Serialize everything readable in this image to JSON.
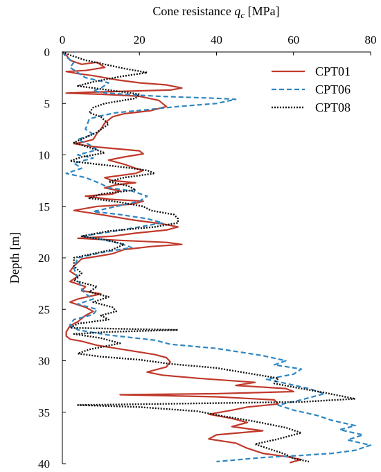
{
  "chart_data": {
    "type": "line",
    "xlabel": "Cone resistance q_c [MPa]",
    "ylabel": "Depth [m]",
    "xlim": [
      0,
      80
    ],
    "ylim": [
      0,
      40
    ],
    "y_inverted": true,
    "x_axis_position": "top",
    "x_ticks": [
      "0",
      "20",
      "40",
      "60",
      "80"
    ],
    "y_ticks": [
      "0",
      "5",
      "10",
      "15",
      "20",
      "25",
      "30",
      "35",
      "40"
    ],
    "grid": false,
    "legend_position": "top-right",
    "series": [
      {
        "name": "CPT01",
        "color": "#c0392b",
        "dash": "solid",
        "points": [
          [
            0,
            0
          ],
          [
            1,
            0.3
          ],
          [
            2,
            0.8
          ],
          [
            5,
            1.2
          ],
          [
            9,
            1.0
          ],
          [
            11,
            1.5
          ],
          [
            6,
            1.8
          ],
          [
            1,
            1.9
          ],
          [
            4,
            2.1
          ],
          [
            8,
            2.3
          ],
          [
            14,
            2.7
          ],
          [
            20,
            3.0
          ],
          [
            27,
            3.2
          ],
          [
            31,
            3.5
          ],
          [
            28,
            3.7
          ],
          [
            18,
            3.8
          ],
          [
            8,
            3.9
          ],
          [
            1,
            4.0
          ],
          [
            10,
            4.1
          ],
          [
            20,
            4.3
          ],
          [
            25,
            4.7
          ],
          [
            27,
            5.3
          ],
          [
            23,
            5.7
          ],
          [
            16,
            6.0
          ],
          [
            13,
            6.3
          ],
          [
            11,
            6.9
          ],
          [
            10,
            7.5
          ],
          [
            9,
            7.9
          ],
          [
            8,
            8.5
          ],
          [
            5,
            8.8
          ],
          [
            3,
            8.9
          ],
          [
            8,
            9.2
          ],
          [
            14,
            9.4
          ],
          [
            20,
            9.6
          ],
          [
            21,
            9.9
          ],
          [
            16,
            10.2
          ],
          [
            12,
            10.5
          ],
          [
            16,
            10.9
          ],
          [
            19,
            11.3
          ],
          [
            21,
            11.5
          ],
          [
            19,
            11.8
          ],
          [
            11,
            12.2
          ],
          [
            13,
            12.5
          ],
          [
            19,
            12.7
          ],
          [
            14,
            12.9
          ],
          [
            11,
            13.2
          ],
          [
            15,
            13.5
          ],
          [
            13,
            13.8
          ],
          [
            6,
            14.0
          ],
          [
            12,
            14.3
          ],
          [
            21,
            14.5
          ],
          [
            18,
            14.8
          ],
          [
            9,
            15.0
          ],
          [
            3,
            15.4
          ],
          [
            10,
            15.8
          ],
          [
            18,
            16.3
          ],
          [
            26,
            16.7
          ],
          [
            30,
            17.0
          ],
          [
            27,
            17.3
          ],
          [
            19,
            17.6
          ],
          [
            13,
            17.9
          ],
          [
            4,
            18.1
          ],
          [
            15,
            18.3
          ],
          [
            27,
            18.5
          ],
          [
            31,
            18.7
          ],
          [
            23,
            18.9
          ],
          [
            16,
            19.2
          ],
          [
            13,
            19.6
          ],
          [
            10,
            19.8
          ],
          [
            5,
            20.1
          ],
          [
            3,
            20.8
          ],
          [
            2,
            21.3
          ],
          [
            4,
            21.8
          ],
          [
            2,
            22.3
          ],
          [
            6,
            22.8
          ],
          [
            5,
            23.2
          ],
          [
            10,
            23.5
          ],
          [
            4,
            24.0
          ],
          [
            2,
            24.3
          ],
          [
            6,
            24.8
          ],
          [
            8,
            25.2
          ],
          [
            6,
            25.6
          ],
          [
            4,
            26.2
          ],
          [
            2,
            26.6
          ],
          [
            1,
            27.2
          ],
          [
            1,
            27.6
          ],
          [
            2,
            27.9
          ],
          [
            5,
            28.1
          ],
          [
            9,
            28.5
          ],
          [
            14,
            28.8
          ],
          [
            19,
            29.1
          ],
          [
            24,
            29.4
          ],
          [
            27,
            29.7
          ],
          [
            28,
            30.1
          ],
          [
            27,
            30.6
          ],
          [
            22,
            31.1
          ],
          [
            26,
            31.4
          ],
          [
            35,
            31.7
          ],
          [
            50,
            32.1
          ],
          [
            45,
            32.4
          ],
          [
            58,
            32.7
          ],
          [
            60,
            33.0
          ],
          [
            40,
            33.2
          ],
          [
            15,
            33.3
          ],
          [
            40,
            33.5
          ],
          [
            55,
            33.8
          ],
          [
            56,
            34.2
          ],
          [
            48,
            34.5
          ],
          [
            44,
            34.8
          ],
          [
            38,
            35.2
          ],
          [
            44,
            35.6
          ],
          [
            48,
            36.0
          ],
          [
            44,
            36.4
          ],
          [
            52,
            36.8
          ],
          [
            40,
            37.2
          ],
          [
            38,
            37.6
          ],
          [
            45,
            38.0
          ],
          [
            48,
            38.5
          ],
          [
            52,
            39.0
          ],
          [
            58,
            39.3
          ],
          [
            62,
            39.6
          ],
          [
            59,
            39.9
          ]
        ]
      },
      {
        "name": "CPT06",
        "color": "#2e86c1",
        "dash": "dashed",
        "points": [
          [
            0,
            0
          ],
          [
            1,
            0.5
          ],
          [
            3,
            1.0
          ],
          [
            2,
            1.5
          ],
          [
            4,
            2.0
          ],
          [
            6,
            2.5
          ],
          [
            12,
            3.0
          ],
          [
            10,
            3.5
          ],
          [
            8,
            3.8
          ],
          [
            12,
            4.0
          ],
          [
            20,
            4.2
          ],
          [
            25,
            4.3
          ],
          [
            32,
            4.4
          ],
          [
            40,
            4.5
          ],
          [
            45,
            4.6
          ],
          [
            40,
            5.0
          ],
          [
            30,
            5.3
          ],
          [
            22,
            5.6
          ],
          [
            14,
            5.9
          ],
          [
            10,
            6.2
          ],
          [
            7,
            6.5
          ],
          [
            6,
            7.5
          ],
          [
            8,
            8.0
          ],
          [
            4,
            8.5
          ],
          [
            7,
            9.0
          ],
          [
            9,
            9.5
          ],
          [
            4,
            10.0
          ],
          [
            8,
            10.3
          ],
          [
            3,
            10.8
          ],
          [
            5,
            11.3
          ],
          [
            1,
            11.8
          ],
          [
            6,
            12.2
          ],
          [
            10,
            12.8
          ],
          [
            12,
            13.2
          ],
          [
            18,
            13.5
          ],
          [
            22,
            14.0
          ],
          [
            20,
            14.5
          ],
          [
            14,
            15.0
          ],
          [
            8,
            15.5
          ],
          [
            15,
            15.8
          ],
          [
            22,
            16.2
          ],
          [
            26,
            16.6
          ],
          [
            20,
            17.0
          ],
          [
            12,
            17.5
          ],
          [
            5,
            17.9
          ],
          [
            10,
            18.2
          ],
          [
            15,
            18.6
          ],
          [
            18,
            19.0
          ],
          [
            10,
            19.5
          ],
          [
            4,
            20.0
          ],
          [
            3,
            21.0
          ],
          [
            4,
            22.0
          ],
          [
            5,
            23.0
          ],
          [
            6,
            23.5
          ],
          [
            8,
            24.0
          ],
          [
            4,
            24.5
          ],
          [
            9,
            25.0
          ],
          [
            8,
            25.5
          ],
          [
            3,
            26.0
          ],
          [
            2,
            26.5
          ],
          [
            4,
            27.0
          ],
          [
            12,
            27.5
          ],
          [
            24,
            28.0
          ],
          [
            28,
            28.4
          ],
          [
            40,
            28.8
          ],
          [
            52,
            29.5
          ],
          [
            58,
            30.0
          ],
          [
            55,
            30.4
          ],
          [
            62,
            30.8
          ],
          [
            60,
            31.3
          ],
          [
            53,
            31.8
          ],
          [
            58,
            32.2
          ],
          [
            64,
            32.7
          ],
          [
            68,
            33.2
          ],
          [
            62,
            33.8
          ],
          [
            56,
            34.3
          ],
          [
            60,
            34.8
          ],
          [
            66,
            35.3
          ],
          [
            70,
            35.8
          ],
          [
            76,
            36.3
          ],
          [
            72,
            36.7
          ],
          [
            78,
            37.2
          ],
          [
            74,
            37.7
          ],
          [
            80,
            38.2
          ],
          [
            76,
            38.7
          ],
          [
            70,
            39.0
          ],
          [
            62,
            39.2
          ],
          [
            52,
            39.4
          ],
          [
            46,
            39.6
          ],
          [
            40,
            39.8
          ]
        ]
      },
      {
        "name": "CPT08",
        "color": "#111111",
        "dash": "dotted",
        "points": [
          [
            0,
            0
          ],
          [
            2,
            0.3
          ],
          [
            6,
            0.8
          ],
          [
            11,
            1.2
          ],
          [
            16,
            1.6
          ],
          [
            22,
            2.0
          ],
          [
            15,
            2.4
          ],
          [
            8,
            2.9
          ],
          [
            4,
            3.3
          ],
          [
            12,
            3.7
          ],
          [
            20,
            4.1
          ],
          [
            19,
            4.5
          ],
          [
            11,
            5.0
          ],
          [
            8,
            5.4
          ],
          [
            7,
            5.9
          ],
          [
            10,
            6.3
          ],
          [
            12,
            7.0
          ],
          [
            9,
            7.8
          ],
          [
            6,
            8.3
          ],
          [
            3,
            8.8
          ],
          [
            8,
            9.4
          ],
          [
            11,
            9.8
          ],
          [
            5,
            10.2
          ],
          [
            2,
            10.6
          ],
          [
            9,
            10.9
          ],
          [
            16,
            11.2
          ],
          [
            22,
            11.5
          ],
          [
            24,
            11.8
          ],
          [
            16,
            12.2
          ],
          [
            12,
            12.6
          ],
          [
            17,
            13.0
          ],
          [
            19,
            13.4
          ],
          [
            10,
            13.8
          ],
          [
            7,
            14.2
          ],
          [
            15,
            14.6
          ],
          [
            21,
            15.0
          ],
          [
            23,
            15.4
          ],
          [
            29,
            15.8
          ],
          [
            30,
            16.2
          ],
          [
            30,
            16.6
          ],
          [
            24,
            17.0
          ],
          [
            12,
            17.4
          ],
          [
            5,
            17.9
          ],
          [
            12,
            18.3
          ],
          [
            16,
            18.7
          ],
          [
            13,
            19.2
          ],
          [
            8,
            19.6
          ],
          [
            3,
            20.0
          ],
          [
            3,
            20.8
          ],
          [
            5,
            21.5
          ],
          [
            3,
            22.2
          ],
          [
            9,
            22.8
          ],
          [
            7,
            23.3
          ],
          [
            12,
            23.8
          ],
          [
            8,
            24.3
          ],
          [
            13,
            24.8
          ],
          [
            14,
            25.2
          ],
          [
            10,
            25.6
          ],
          [
            12,
            26.0
          ],
          [
            4,
            26.4
          ],
          [
            2,
            26.8
          ],
          [
            30,
            27.0
          ],
          [
            12,
            27.2
          ],
          [
            3,
            27.4
          ],
          [
            10,
            27.8
          ],
          [
            15,
            28.3
          ],
          [
            7,
            28.9
          ],
          [
            4,
            29.3
          ],
          [
            10,
            29.6
          ],
          [
            20,
            29.9
          ],
          [
            28,
            30.3
          ],
          [
            40,
            30.7
          ],
          [
            48,
            31.2
          ],
          [
            56,
            31.7
          ],
          [
            55,
            32.2
          ],
          [
            62,
            32.7
          ],
          [
            68,
            33.1
          ],
          [
            72,
            33.4
          ],
          [
            76,
            33.7
          ],
          [
            62,
            34.0
          ],
          [
            4,
            34.3
          ],
          [
            20,
            34.5
          ],
          [
            35,
            34.9
          ],
          [
            42,
            35.4
          ],
          [
            50,
            35.9
          ],
          [
            58,
            36.5
          ],
          [
            62,
            37.0
          ],
          [
            56,
            37.6
          ],
          [
            50,
            38.1
          ],
          [
            54,
            38.6
          ],
          [
            58,
            39.1
          ],
          [
            60,
            39.5
          ],
          [
            64,
            39.8
          ]
        ]
      }
    ]
  }
}
